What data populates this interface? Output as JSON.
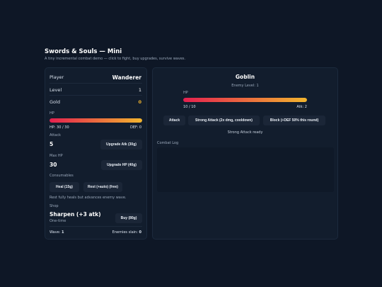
{
  "header": {
    "title": "Swords & Souls — Mini",
    "subtitle": "A tiny incremental combat demo — click to fight, buy upgrades, survive waves."
  },
  "player": {
    "label": "Player",
    "name": "Wanderer",
    "level_label": "Level",
    "level": 1,
    "gold_label": "Gold",
    "gold": 0,
    "hp_title": "HP",
    "hp": {
      "current": 30,
      "max": 30,
      "label": "HP: 30 / 30"
    },
    "def_label": "DEF: 0",
    "attack_label": "Attack",
    "attack": 5,
    "upgrade_atk": "Upgrade Atk (30g)",
    "max_hp_label": "Max HP",
    "max_hp": 30,
    "upgrade_hp": "Upgrade HP (40g)",
    "consumables_label": "Consumables",
    "heal": "Heal (15g)",
    "rest": "Rest (+auto) (free)",
    "rest_note": "Rest fully heals but advances enemy wave.",
    "shop_label": "Shop",
    "shop_item": "Sharpen (+3 atk)",
    "shop_item_note": "One-time",
    "buy": "Buy (80g)",
    "wave_label": "Wave:",
    "wave": 1,
    "slain_label": "Enemies slain:",
    "slain": 0
  },
  "enemy": {
    "name": "Goblin",
    "level_label": "Enemy Level: 1",
    "hp_title": "HP",
    "hp": {
      "current": 10,
      "max": 10,
      "label": "10 / 10"
    },
    "atk_label": "Atk: 2",
    "actions": [
      "Attack",
      "Strong Attack (2x dmg, cooldown)",
      "Block (+DEF 50% this round)"
    ],
    "status": "Strong Attack ready",
    "log_label": "Combat Log"
  }
}
